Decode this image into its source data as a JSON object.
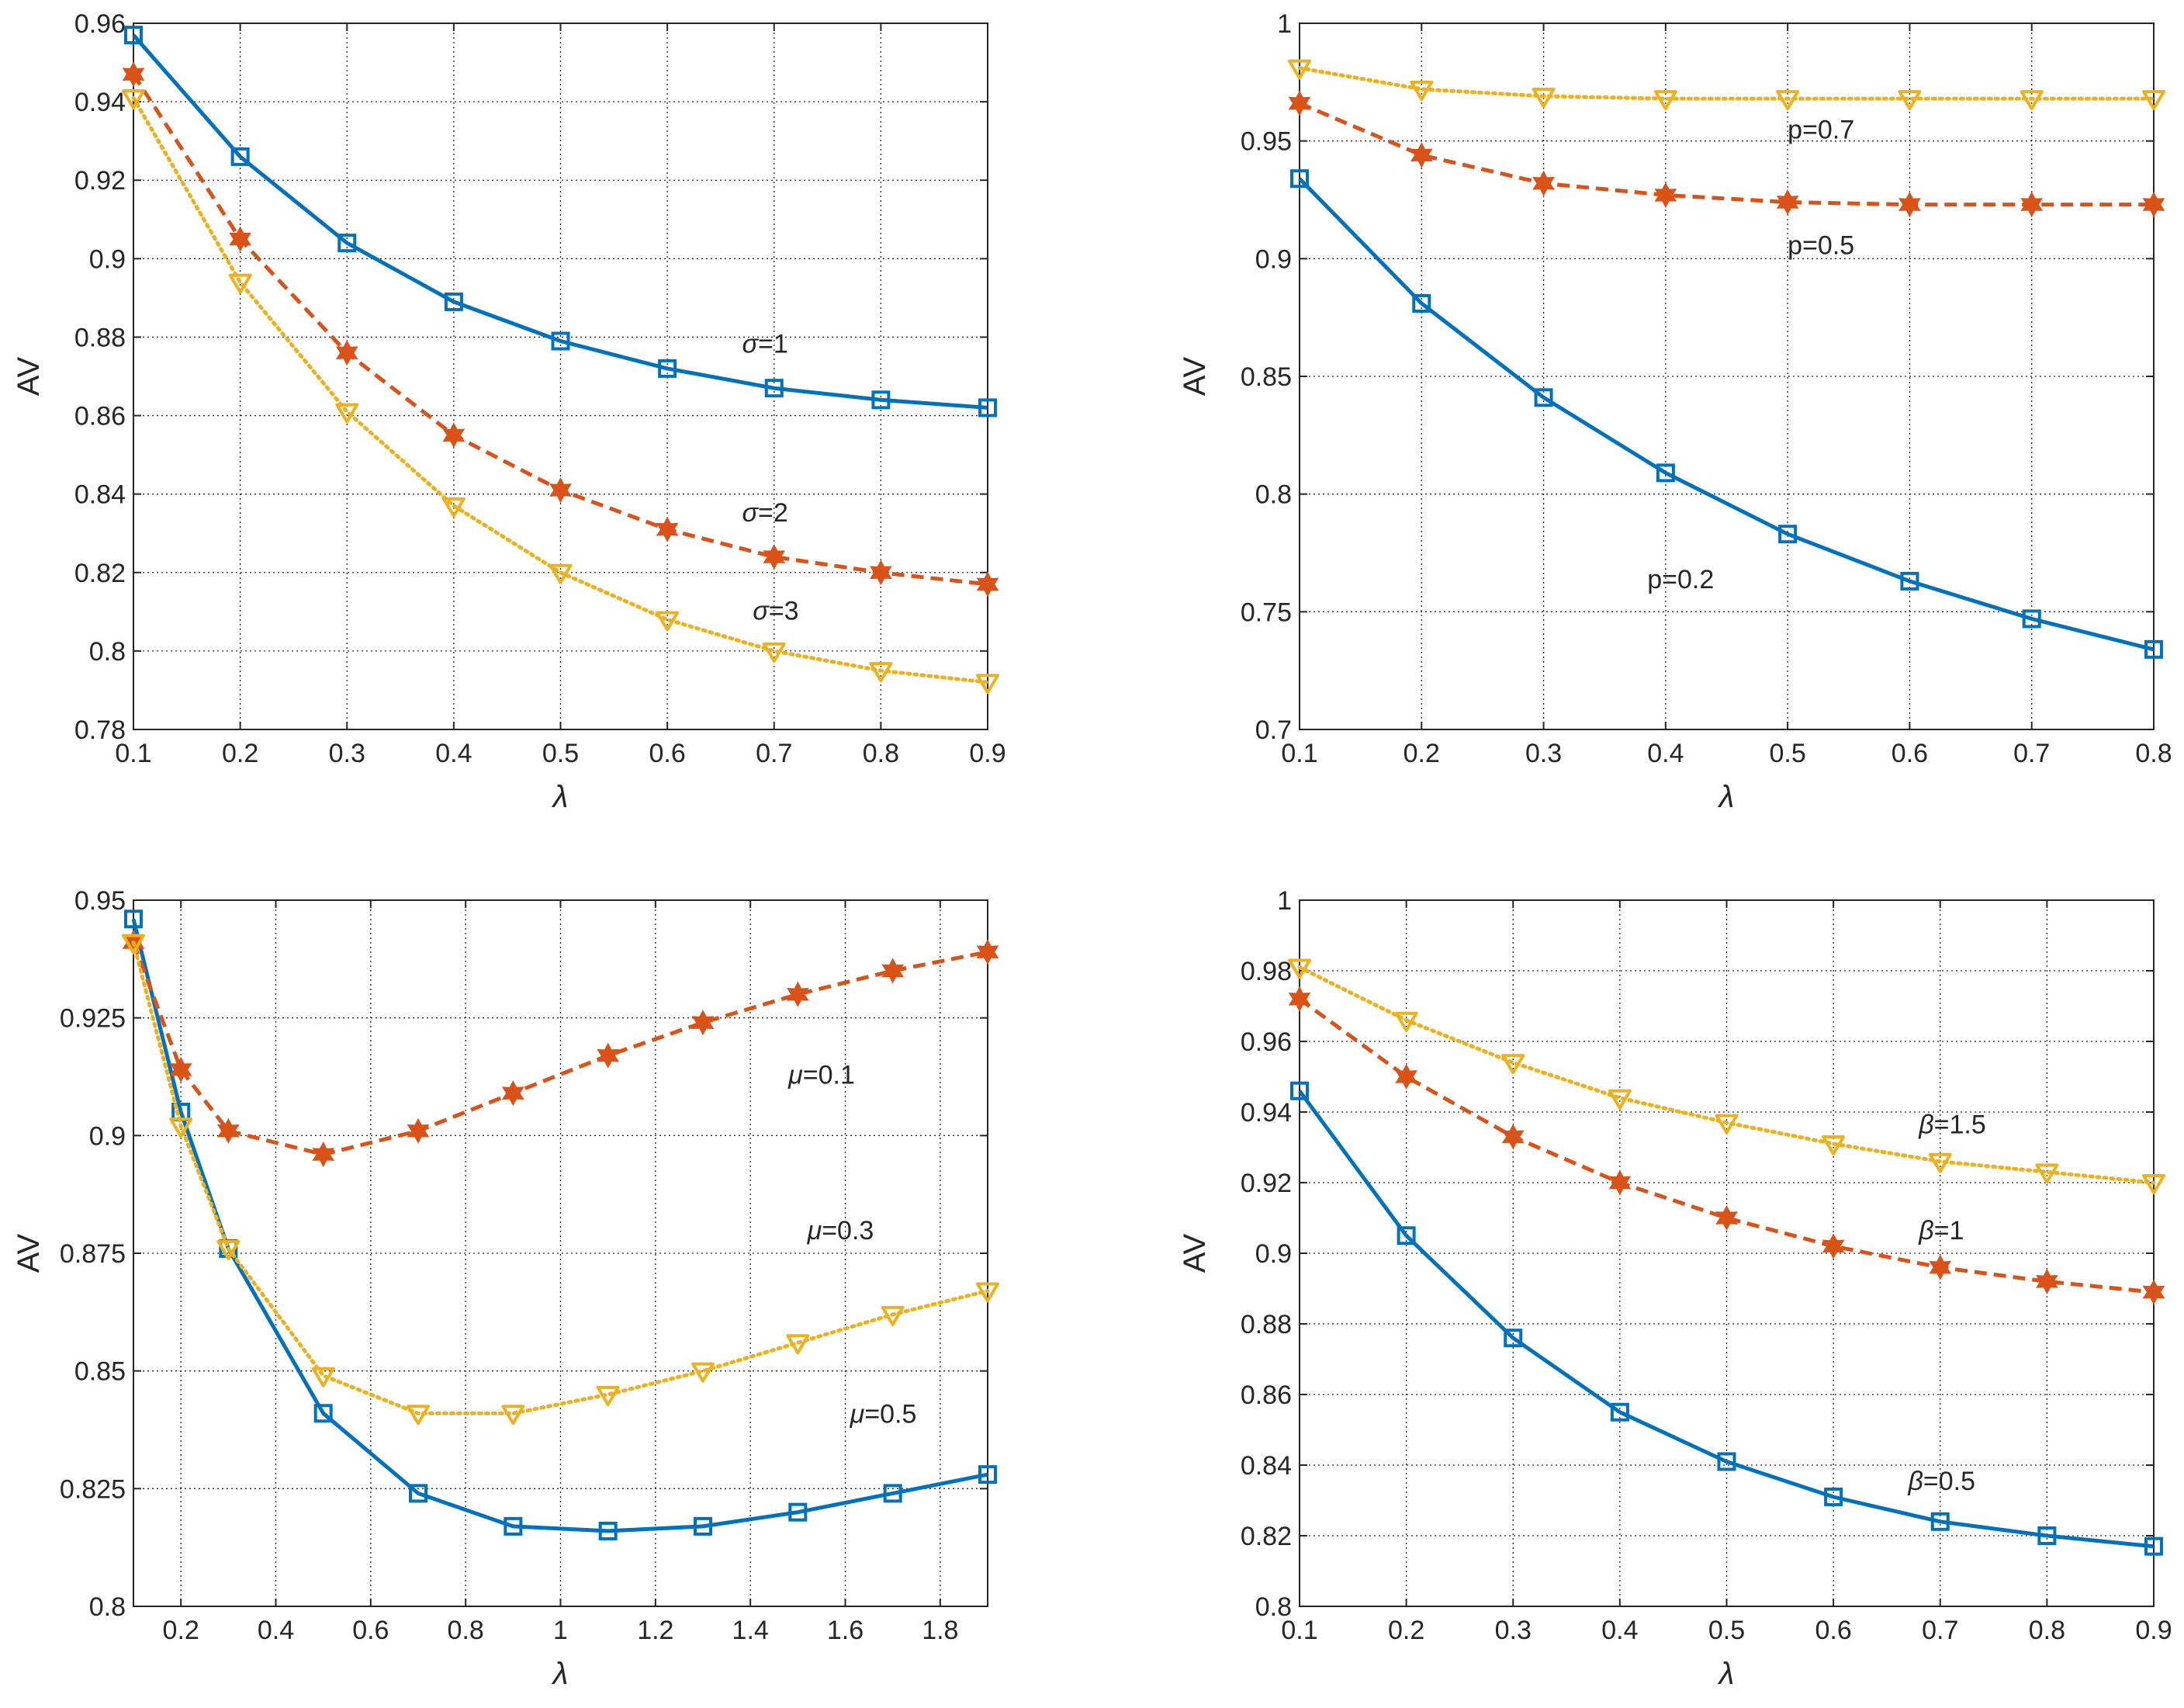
{
  "colors": {
    "blue": "#0072BD",
    "orange": "#D95319",
    "yellow": "#EDB120",
    "axis": "#262626",
    "grid": "#262626"
  },
  "chart_data": [
    {
      "type": "line",
      "xlabel": "λ",
      "ylabel": "AV",
      "xlim": [
        0.1,
        0.9
      ],
      "ylim": [
        0.78,
        0.96
      ],
      "xticks": [
        0.1,
        0.2,
        0.3,
        0.4,
        0.5,
        0.6,
        0.7,
        0.8,
        0.9
      ],
      "xticklabels": [
        "0.1",
        "0.2",
        "0.3",
        "0.4",
        "0.5",
        "0.6",
        "0.7",
        "0.8",
        "0.9"
      ],
      "yticks": [
        0.78,
        0.8,
        0.82,
        0.84,
        0.86,
        0.88,
        0.9,
        0.92,
        0.94,
        0.96
      ],
      "yticklabels": [
        "0.78",
        "0.8",
        "0.82",
        "0.84",
        "0.86",
        "0.88",
        "0.9",
        "0.92",
        "0.94",
        "0.96"
      ],
      "grid": true,
      "x": [
        0.1,
        0.2,
        0.3,
        0.4,
        0.5,
        0.6,
        0.7,
        0.8,
        0.9
      ],
      "series": [
        {
          "name": "σ=1",
          "color": "blue",
          "style": "solid",
          "marker": "square",
          "values": [
            0.957,
            0.926,
            0.904,
            0.889,
            0.879,
            0.872,
            0.867,
            0.864,
            0.862
          ]
        },
        {
          "name": "σ=2",
          "color": "orange",
          "style": "dashed",
          "marker": "hexagram",
          "values": [
            0.947,
            0.905,
            0.876,
            0.855,
            0.841,
            0.831,
            0.824,
            0.82,
            0.817
          ]
        },
        {
          "name": "σ=3",
          "color": "yellow",
          "style": "dotted",
          "marker": "triangle-down",
          "values": [
            0.941,
            0.894,
            0.861,
            0.837,
            0.82,
            0.808,
            0.8,
            0.795,
            0.792
          ]
        }
      ],
      "annotations": [
        {
          "prefix": "σ",
          "text": "=1",
          "x": 0.67,
          "y": 0.876
        },
        {
          "prefix": "σ",
          "text": "=2",
          "x": 0.67,
          "y": 0.833
        },
        {
          "prefix": "σ",
          "text": "=3",
          "x": 0.68,
          "y": 0.808
        }
      ]
    },
    {
      "type": "line",
      "xlabel": "λ",
      "ylabel": "AV",
      "xlim": [
        0.1,
        0.8
      ],
      "ylim": [
        0.7,
        1.0
      ],
      "xticks": [
        0.1,
        0.2,
        0.3,
        0.4,
        0.5,
        0.6,
        0.7,
        0.8
      ],
      "xticklabels": [
        "0.1",
        "0.2",
        "0.3",
        "0.4",
        "0.5",
        "0.6",
        "0.7",
        "0.8"
      ],
      "yticks": [
        0.7,
        0.75,
        0.8,
        0.85,
        0.9,
        0.95,
        1.0
      ],
      "yticklabels": [
        "0.7",
        "0.75",
        "0.8",
        "0.85",
        "0.9",
        "0.95",
        "1"
      ],
      "grid": true,
      "x": [
        0.1,
        0.2,
        0.3,
        0.4,
        0.5,
        0.6,
        0.7,
        0.8
      ],
      "series": [
        {
          "name": "p=0.2",
          "color": "blue",
          "style": "solid",
          "marker": "square",
          "values": [
            0.934,
            0.881,
            0.841,
            0.809,
            0.783,
            0.763,
            0.747,
            0.734
          ]
        },
        {
          "name": "p=0.5",
          "color": "orange",
          "style": "dashed",
          "marker": "hexagram",
          "values": [
            0.966,
            0.944,
            0.932,
            0.927,
            0.924,
            0.923,
            0.923,
            0.923
          ]
        },
        {
          "name": "p=0.7",
          "color": "yellow",
          "style": "dotted",
          "marker": "triangle-down",
          "values": [
            0.981,
            0.972,
            0.969,
            0.968,
            0.968,
            0.968,
            0.968,
            0.968
          ]
        }
      ],
      "annotations": [
        {
          "prefix": "",
          "text": "p=0.7",
          "x": 0.5,
          "y": 0.951
        },
        {
          "prefix": "",
          "text": "p=0.5",
          "x": 0.5,
          "y": 0.902
        },
        {
          "prefix": "",
          "text": "p=0.2",
          "x": 0.385,
          "y": 0.76
        }
      ]
    },
    {
      "type": "line",
      "xlabel": "λ",
      "ylabel": "AV",
      "xlim": [
        0.1,
        1.9
      ],
      "ylim": [
        0.8,
        0.95
      ],
      "xticks": [
        0.2,
        0.4,
        0.6,
        0.8,
        1.0,
        1.2,
        1.4,
        1.6,
        1.8
      ],
      "xticklabels": [
        "0.2",
        "0.4",
        "0.6",
        "0.8",
        "1",
        "1.2",
        "1.4",
        "1.6",
        "1.8"
      ],
      "yticks": [
        0.8,
        0.825,
        0.85,
        0.875,
        0.9,
        0.925,
        0.95
      ],
      "yticklabels": [
        "0.8",
        "0.825",
        "0.85",
        "0.875",
        "0.9",
        "0.925",
        "0.95"
      ],
      "grid": true,
      "x": [
        0.1,
        0.2,
        0.3,
        0.5,
        0.7,
        0.9,
        1.1,
        1.3,
        1.5,
        1.7,
        1.9
      ],
      "series": [
        {
          "name": "μ=0.5",
          "color": "blue",
          "style": "solid",
          "marker": "square",
          "values": [
            0.946,
            0.905,
            0.876,
            0.841,
            0.824,
            0.817,
            0.816,
            0.817,
            0.82,
            0.824,
            0.828
          ]
        },
        {
          "name": "μ=0.1",
          "color": "orange",
          "style": "dashed",
          "marker": "hexagram",
          "values": [
            0.941,
            0.914,
            0.901,
            0.896,
            0.901,
            0.909,
            0.917,
            0.924,
            0.93,
            0.935,
            0.939
          ]
        },
        {
          "name": "μ=0.3",
          "color": "yellow",
          "style": "dotted",
          "marker": "triangle-down",
          "values": [
            0.941,
            0.902,
            0.876,
            0.849,
            0.841,
            0.841,
            0.845,
            0.85,
            0.856,
            0.862,
            0.867
          ]
        }
      ],
      "annotations": [
        {
          "prefix": "μ",
          "text": "=0.1",
          "x": 1.48,
          "y": 0.911
        },
        {
          "prefix": "μ",
          "text": "=0.3",
          "x": 1.52,
          "y": 0.878
        },
        {
          "prefix": "μ",
          "text": "=0.5",
          "x": 1.61,
          "y": 0.839
        }
      ]
    },
    {
      "type": "line",
      "xlabel": "λ",
      "ylabel": "AV",
      "xlim": [
        0.1,
        0.9
      ],
      "ylim": [
        0.8,
        1.0
      ],
      "xticks": [
        0.1,
        0.2,
        0.3,
        0.4,
        0.5,
        0.6,
        0.7,
        0.8,
        0.9
      ],
      "xticklabels": [
        "0.1",
        "0.2",
        "0.3",
        "0.4",
        "0.5",
        "0.6",
        "0.7",
        "0.8",
        "0.9"
      ],
      "yticks": [
        0.8,
        0.82,
        0.84,
        0.86,
        0.88,
        0.9,
        0.92,
        0.94,
        0.96,
        0.98,
        1.0
      ],
      "yticklabels": [
        "0.8",
        "0.82",
        "0.84",
        "0.86",
        "0.88",
        "0.9",
        "0.92",
        "0.94",
        "0.96",
        "0.98",
        "1"
      ],
      "grid": true,
      "x": [
        0.1,
        0.2,
        0.3,
        0.4,
        0.5,
        0.6,
        0.7,
        0.8,
        0.9
      ],
      "series": [
        {
          "name": "β=0.5",
          "color": "blue",
          "style": "solid",
          "marker": "square",
          "values": [
            0.946,
            0.905,
            0.876,
            0.855,
            0.841,
            0.831,
            0.824,
            0.82,
            0.817
          ]
        },
        {
          "name": "β=1",
          "color": "orange",
          "style": "dashed",
          "marker": "hexagram",
          "values": [
            0.972,
            0.95,
            0.933,
            0.92,
            0.91,
            0.902,
            0.896,
            0.892,
            0.889
          ]
        },
        {
          "name": "β=1.5",
          "color": "yellow",
          "style": "dotted",
          "marker": "triangle-down",
          "values": [
            0.981,
            0.966,
            0.954,
            0.944,
            0.937,
            0.931,
            0.926,
            0.923,
            0.92
          ]
        }
      ],
      "annotations": [
        {
          "prefix": "β",
          "text": "=1.5",
          "x": 0.68,
          "y": 0.934
        },
        {
          "prefix": "β",
          "text": "=1",
          "x": 0.68,
          "y": 0.904
        },
        {
          "prefix": "β",
          "text": "=0.5",
          "x": 0.67,
          "y": 0.833
        }
      ]
    }
  ]
}
